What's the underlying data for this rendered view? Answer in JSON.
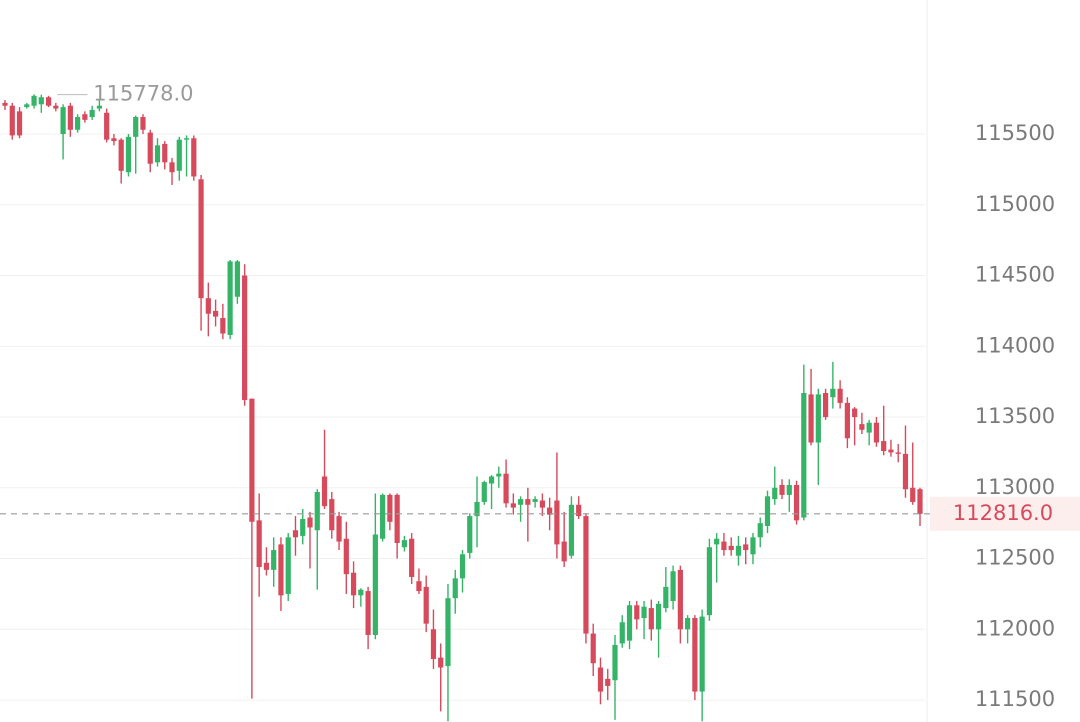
{
  "chart_data": {
    "type": "candlestick",
    "up_color": "#35b468",
    "down_color": "#d64a5c",
    "ylim": [
      111345,
      116447
    ],
    "yticks": [
      111500,
      112000,
      112500,
      113000,
      113500,
      114000,
      114500,
      115000,
      115500
    ],
    "grid": true,
    "max_marker": {
      "value": 115778,
      "label": "115778.0"
    },
    "last_price": {
      "value": 112816,
      "label": "112816.0"
    },
    "candles": [
      [
        115720,
        115740,
        115670,
        115700
      ],
      [
        115700,
        115720,
        115460,
        115490
      ],
      [
        115660,
        115690,
        115470,
        115490
      ],
      [
        115690,
        115720,
        115680,
        115710
      ],
      [
        115700,
        115780,
        115680,
        115770
      ],
      [
        115710,
        115778,
        115650,
        115760
      ],
      [
        115760,
        115770,
        115690,
        115700
      ],
      [
        115700,
        115720,
        115660,
        115680
      ],
      [
        115500,
        115710,
        115320,
        115690
      ],
      [
        115700,
        115720,
        115480,
        115530
      ],
      [
        115530,
        115640,
        115510,
        115620
      ],
      [
        115640,
        115660,
        115580,
        115600
      ],
      [
        115620,
        115700,
        115600,
        115670
      ],
      [
        115680,
        115750,
        115660,
        115700
      ],
      [
        115650,
        115680,
        115440,
        115460
      ],
      [
        115470,
        115500,
        115420,
        115450
      ],
      [
        115460,
        115470,
        115150,
        115240
      ],
      [
        115230,
        115500,
        115200,
        115480
      ],
      [
        115480,
        115630,
        115220,
        115620
      ],
      [
        115620,
        115640,
        115500,
        115530
      ],
      [
        115510,
        115530,
        115230,
        115290
      ],
      [
        115300,
        115470,
        115270,
        115420
      ],
      [
        115430,
        115450,
        115250,
        115300
      ],
      [
        115300,
        115330,
        115140,
        115230
      ],
      [
        115240,
        115480,
        115170,
        115460
      ],
      [
        115460,
        115490,
        115200,
        115470
      ],
      [
        115470,
        115490,
        115170,
        115200
      ],
      [
        115180,
        115210,
        114110,
        114340
      ],
      [
        114340,
        114450,
        114070,
        114230
      ],
      [
        114250,
        114330,
        114140,
        114210
      ],
      [
        114200,
        114300,
        114050,
        114090
      ],
      [
        114080,
        114610,
        114050,
        114600
      ],
      [
        114350,
        114610,
        114300,
        114600
      ],
      [
        114500,
        114580,
        113580,
        113620
      ],
      [
        113630,
        113630,
        111510,
        112760
      ],
      [
        112770,
        112960,
        112230,
        112440
      ],
      [
        112470,
        112580,
        112380,
        112420
      ],
      [
        112420,
        112650,
        112300,
        112560
      ],
      [
        112600,
        112650,
        112130,
        112240
      ],
      [
        112250,
        112680,
        112200,
        112650
      ],
      [
        112700,
        112800,
        112520,
        112650
      ],
      [
        112660,
        112850,
        112600,
        112780
      ],
      [
        112790,
        112830,
        112430,
        112720
      ],
      [
        112700,
        112990,
        112280,
        112970
      ],
      [
        113080,
        113410,
        112850,
        112870
      ],
      [
        112920,
        112970,
        112640,
        112700
      ],
      [
        112800,
        112830,
        112560,
        112620
      ],
      [
        112640,
        112760,
        112250,
        112390
      ],
      [
        112400,
        112480,
        112150,
        112240
      ],
      [
        112240,
        112290,
        112160,
        112280
      ],
      [
        112270,
        112300,
        111860,
        111960
      ],
      [
        111960,
        112960,
        111930,
        112670
      ],
      [
        112640,
        112960,
        112620,
        112950
      ],
      [
        112950,
        112960,
        112700,
        112760
      ],
      [
        112950,
        112960,
        112500,
        112610
      ],
      [
        112580,
        112660,
        112550,
        112630
      ],
      [
        112640,
        112680,
        112320,
        112370
      ],
      [
        112340,
        112430,
        112250,
        112270
      ],
      [
        112300,
        112380,
        111980,
        112040
      ],
      [
        112000,
        112140,
        111720,
        111790
      ],
      [
        111800,
        111900,
        111420,
        111730
      ],
      [
        111740,
        112320,
        111350,
        112220
      ],
      [
        112220,
        112420,
        112110,
        112360
      ],
      [
        112360,
        112560,
        112260,
        112530
      ],
      [
        112540,
        112820,
        112500,
        112800
      ],
      [
        112800,
        113080,
        112580,
        112900
      ],
      [
        112900,
        113050,
        112880,
        113040
      ],
      [
        113030,
        113090,
        112850,
        113080
      ],
      [
        113080,
        113150,
        113000,
        113100
      ],
      [
        113100,
        113200,
        112860,
        112890
      ],
      [
        112890,
        112960,
        112810,
        112860
      ],
      [
        112880,
        112940,
        112760,
        112920
      ],
      [
        112920,
        113000,
        112620,
        112880
      ],
      [
        112900,
        112940,
        112860,
        112920
      ],
      [
        112910,
        112960,
        112800,
        112860
      ],
      [
        112860,
        112930,
        112700,
        112810
      ],
      [
        112910,
        113250,
        112500,
        112600
      ],
      [
        112620,
        112830,
        112440,
        112480
      ],
      [
        112520,
        112940,
        112500,
        112880
      ],
      [
        112880,
        112940,
        112780,
        112800
      ],
      [
        112800,
        112820,
        111900,
        111970
      ],
      [
        111970,
        112040,
        111670,
        111760
      ],
      [
        111730,
        111800,
        111470,
        111560
      ],
      [
        111650,
        111720,
        111500,
        111600
      ],
      [
        111640,
        111960,
        111360,
        111890
      ],
      [
        111900,
        112100,
        111870,
        112050
      ],
      [
        111920,
        112200,
        111860,
        112170
      ],
      [
        112170,
        112200,
        112000,
        112070
      ],
      [
        112080,
        112200,
        111930,
        112160
      ],
      [
        112150,
        112210,
        111920,
        112000
      ],
      [
        112000,
        112200,
        111800,
        112180
      ],
      [
        112150,
        112440,
        112120,
        112300
      ],
      [
        112200,
        112450,
        112140,
        112410
      ],
      [
        112420,
        112450,
        111900,
        112000
      ],
      [
        112000,
        112100,
        111900,
        112080
      ],
      [
        112080,
        112100,
        111500,
        111560
      ],
      [
        111560,
        112140,
        111350,
        112090
      ],
      [
        112100,
        112640,
        112060,
        112580
      ],
      [
        112600,
        112680,
        112330,
        112640
      ],
      [
        112620,
        112680,
        112520,
        112560
      ],
      [
        112590,
        112650,
        112520,
        112560
      ],
      [
        112520,
        112660,
        112450,
        112590
      ],
      [
        112600,
        112650,
        112460,
        112560
      ],
      [
        112530,
        112680,
        112460,
        112650
      ],
      [
        112650,
        112790,
        112580,
        112750
      ],
      [
        112730,
        112980,
        112680,
        112940
      ],
      [
        112920,
        113150,
        112880,
        113000
      ],
      [
        113020,
        113060,
        112920,
        112950
      ],
      [
        112950,
        113060,
        112830,
        113020
      ],
      [
        113020,
        113050,
        112740,
        112770
      ],
      [
        112790,
        113870,
        112770,
        113670
      ],
      [
        113660,
        113840,
        113300,
        113320
      ],
      [
        113320,
        113700,
        113020,
        113660
      ],
      [
        113670,
        113700,
        113480,
        113500
      ],
      [
        113640,
        113890,
        113560,
        113700
      ],
      [
        113700,
        113760,
        113560,
        113600
      ],
      [
        113600,
        113640,
        113280,
        113350
      ],
      [
        113560,
        113570,
        113300,
        113500
      ],
      [
        113450,
        113530,
        113380,
        113410
      ],
      [
        113390,
        113480,
        113300,
        113460
      ],
      [
        113460,
        113500,
        113290,
        113320
      ],
      [
        113330,
        113580,
        113230,
        113260
      ],
      [
        113270,
        113340,
        113220,
        113250
      ],
      [
        113250,
        113310,
        113180,
        113240
      ],
      [
        113240,
        113440,
        112930,
        112990
      ],
      [
        113000,
        113320,
        112880,
        112900
      ],
      [
        112990,
        113000,
        112730,
        112816
      ]
    ]
  }
}
